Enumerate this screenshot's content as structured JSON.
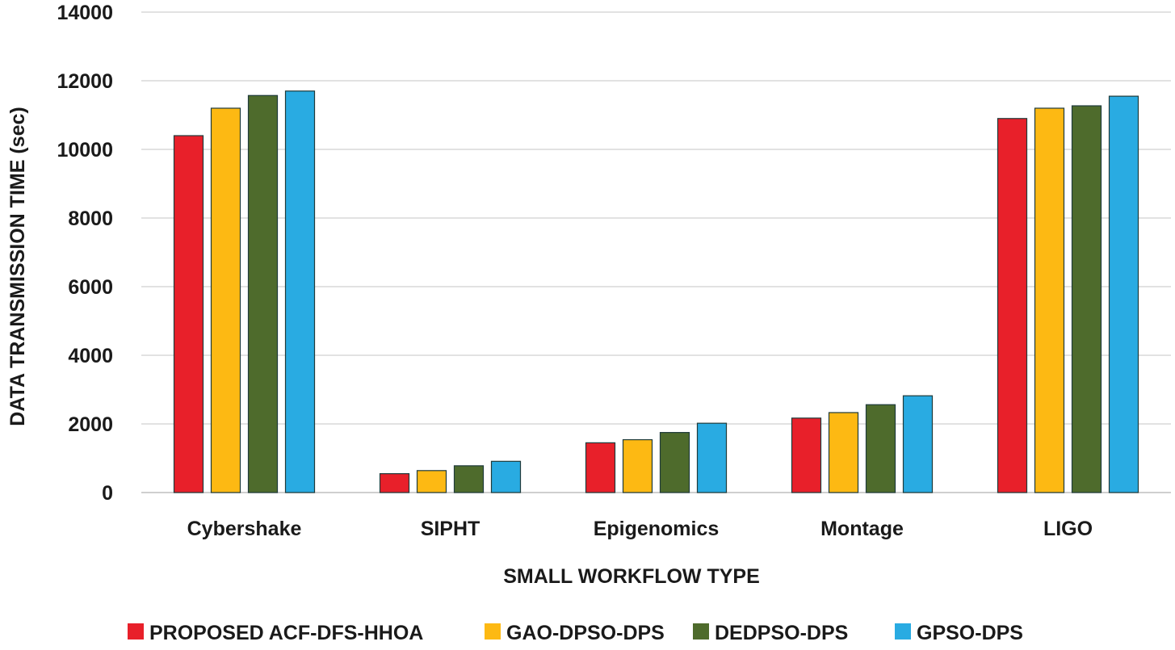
{
  "chart_data": {
    "type": "bar",
    "title": "",
    "xlabel": "SMALL WORKFLOW TYPE",
    "ylabel": "DATA TRANSMISSION TIME  (sec)",
    "ylim": [
      0,
      14000
    ],
    "yticks": [
      0,
      2000,
      4000,
      6000,
      8000,
      10000,
      12000,
      14000
    ],
    "grid": true,
    "legend_position": "bottom",
    "categories": [
      "Cybershake",
      "SIPHT",
      "Epigenomics",
      "Montage",
      "LIGO"
    ],
    "series": [
      {
        "name": "PROPOSED ACF-DFS-HHOA",
        "color": "#e8202a",
        "values": [
          10400,
          550,
          1450,
          2170,
          10900
        ]
      },
      {
        "name": "GAO-DPSO-DPS",
        "color": "#fdb913",
        "values": [
          11200,
          640,
          1540,
          2330,
          11200
        ]
      },
      {
        "name": "DEDPSO-DPS",
        "color": "#4e6b2c",
        "values": [
          11570,
          780,
          1750,
          2560,
          11270
        ]
      },
      {
        "name": "GPSO-DPS",
        "color": "#29abe2",
        "values": [
          11700,
          910,
          2020,
          2820,
          11550
        ]
      }
    ]
  }
}
